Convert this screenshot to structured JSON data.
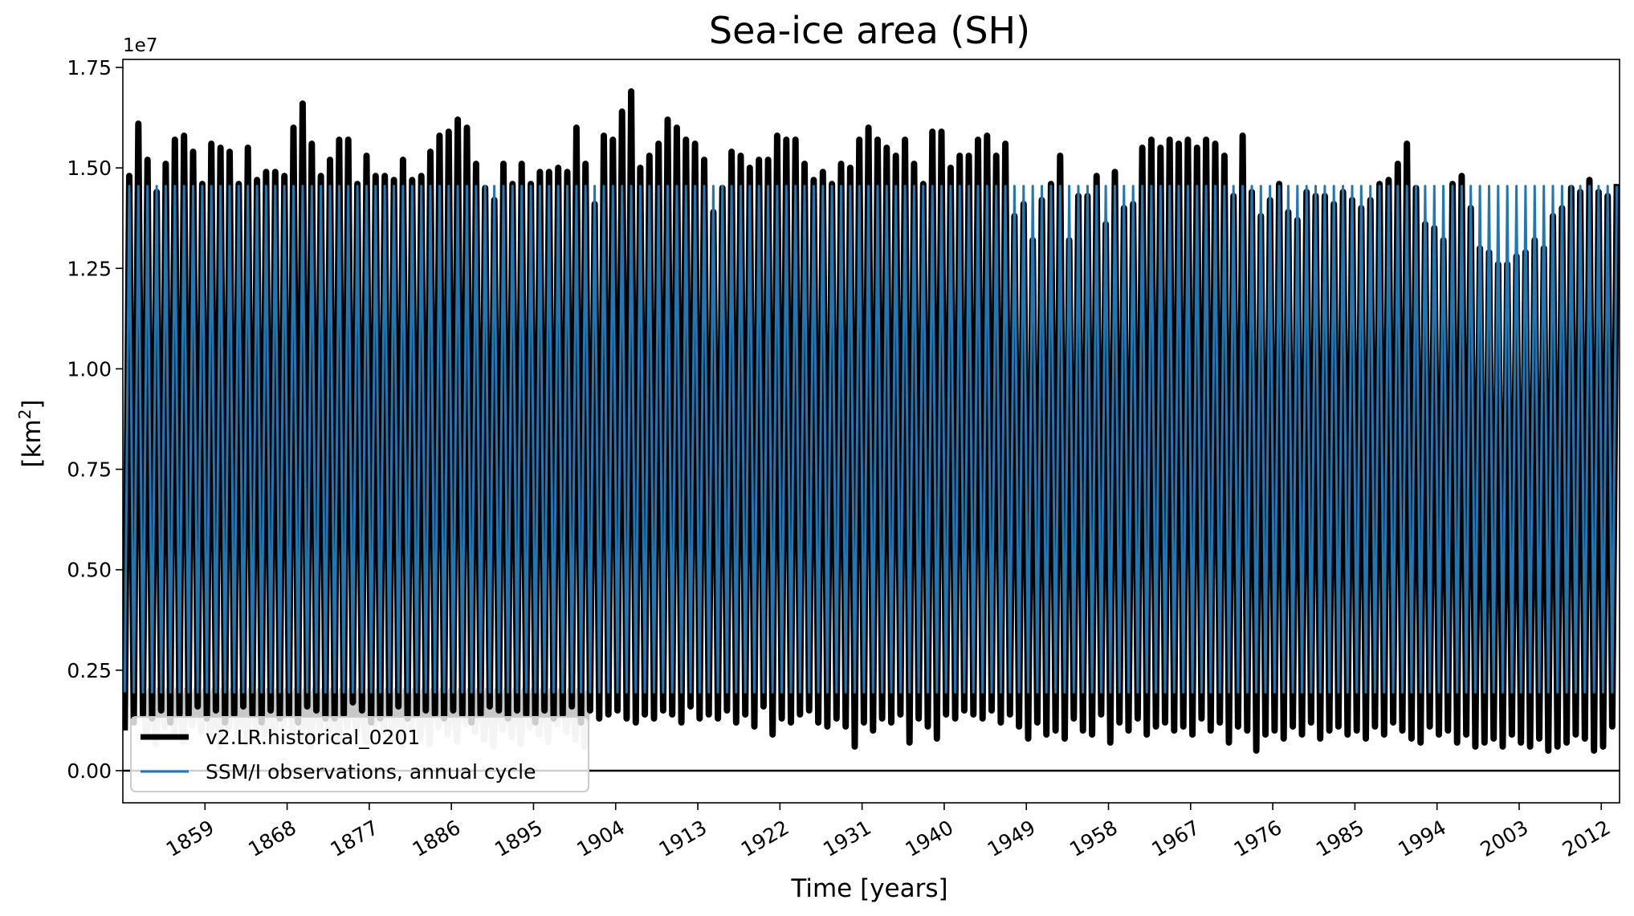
{
  "chart_data": {
    "type": "line",
    "title": "Sea-ice area (SH)",
    "xlabel": "Time [years]",
    "ylabel_main": "[km",
    "ylabel_sup": "2",
    "ylabel_close": "]",
    "offset_label": "1e7",
    "xlim": [
      1850,
      2014
    ],
    "ylim": [
      -0.08,
      1.77
    ],
    "y_ticks": [
      0.0,
      0.25,
      0.5,
      0.75,
      1.0,
      1.25,
      1.5,
      1.75
    ],
    "y_tick_labels": [
      "0.00",
      "0.25",
      "0.50",
      "0.75",
      "1.00",
      "1.25",
      "1.50",
      "1.75"
    ],
    "x_ticks": [
      1859,
      1868,
      1877,
      1886,
      1895,
      1904,
      1913,
      1922,
      1931,
      1940,
      1949,
      1958,
      1967,
      1976,
      1985,
      1994,
      2003,
      2012
    ],
    "x_tick_labels": [
      "1859",
      "1868",
      "1877",
      "1886",
      "1895",
      "1904",
      "1913",
      "1922",
      "1931",
      "1940",
      "1949",
      "1958",
      "1967",
      "1976",
      "1985",
      "1994",
      "2003",
      "2012"
    ],
    "zero_line": true,
    "grid": false,
    "legend_position": "lower-left",
    "series": [
      {
        "name": "v2.LR.historical_0201",
        "color": "#000000",
        "style": "seasonal-cycle",
        "years": [
          1850,
          1851,
          1852,
          1853,
          1854,
          1855,
          1856,
          1857,
          1858,
          1859,
          1860,
          1861,
          1862,
          1863,
          1864,
          1865,
          1866,
          1867,
          1868,
          1869,
          1870,
          1871,
          1872,
          1873,
          1874,
          1875,
          1876,
          1877,
          1878,
          1879,
          1880,
          1881,
          1882,
          1883,
          1884,
          1885,
          1886,
          1887,
          1888,
          1889,
          1890,
          1891,
          1892,
          1893,
          1894,
          1895,
          1896,
          1897,
          1898,
          1899,
          1900,
          1901,
          1902,
          1903,
          1904,
          1905,
          1906,
          1907,
          1908,
          1909,
          1910,
          1911,
          1912,
          1913,
          1914,
          1915,
          1916,
          1917,
          1918,
          1919,
          1920,
          1921,
          1922,
          1923,
          1924,
          1925,
          1926,
          1927,
          1928,
          1929,
          1930,
          1931,
          1932,
          1933,
          1934,
          1935,
          1936,
          1937,
          1938,
          1939,
          1940,
          1941,
          1942,
          1943,
          1944,
          1945,
          1946,
          1947,
          1948,
          1949,
          1950,
          1951,
          1952,
          1953,
          1954,
          1955,
          1956,
          1957,
          1958,
          1959,
          1960,
          1961,
          1962,
          1963,
          1964,
          1965,
          1966,
          1967,
          1968,
          1969,
          1970,
          1971,
          1972,
          1973,
          1974,
          1975,
          1976,
          1977,
          1978,
          1979,
          1980,
          1981,
          1982,
          1983,
          1984,
          1985,
          1986,
          1987,
          1988,
          1989,
          1990,
          1991,
          1992,
          1993,
          1994,
          1995,
          1996,
          1997,
          1998,
          1999,
          2000,
          2001,
          2002,
          2003,
          2004,
          2005,
          2006,
          2007,
          2008,
          2009,
          2010,
          2011,
          2012,
          2013
        ],
        "annual_max": [
          1.48,
          1.61,
          1.52,
          1.44,
          1.51,
          1.57,
          1.58,
          1.54,
          1.46,
          1.56,
          1.55,
          1.54,
          1.46,
          1.55,
          1.47,
          1.49,
          1.49,
          1.48,
          1.6,
          1.66,
          1.56,
          1.48,
          1.52,
          1.57,
          1.57,
          1.46,
          1.53,
          1.48,
          1.48,
          1.47,
          1.52,
          1.47,
          1.48,
          1.54,
          1.58,
          1.59,
          1.62,
          1.6,
          1.51,
          1.45,
          1.42,
          1.51,
          1.46,
          1.51,
          1.46,
          1.49,
          1.49,
          1.5,
          1.49,
          1.6,
          1.51,
          1.41,
          1.58,
          1.57,
          1.64,
          1.69,
          1.5,
          1.53,
          1.56,
          1.62,
          1.6,
          1.57,
          1.56,
          1.52,
          1.39,
          1.45,
          1.54,
          1.53,
          1.5,
          1.52,
          1.52,
          1.58,
          1.57,
          1.57,
          1.51,
          1.47,
          1.49,
          1.46,
          1.51,
          1.5,
          1.57,
          1.6,
          1.57,
          1.55,
          1.53,
          1.57,
          1.51,
          1.46,
          1.59,
          1.59,
          1.5,
          1.53,
          1.53,
          1.57,
          1.58,
          1.53,
          1.56,
          1.38,
          1.41,
          1.32,
          1.42,
          1.46,
          1.53,
          1.32,
          1.43,
          1.43,
          1.48,
          1.36,
          1.49,
          1.4,
          1.41,
          1.55,
          1.57,
          1.55,
          1.57,
          1.56,
          1.57,
          1.55,
          1.57,
          1.56,
          1.53,
          1.43,
          1.58,
          1.44,
          1.38,
          1.42,
          1.46,
          1.39,
          1.37,
          1.44,
          1.43,
          1.43,
          1.41,
          1.44,
          1.42,
          1.4,
          1.42,
          1.46,
          1.47,
          1.51,
          1.56,
          1.45,
          1.36,
          1.35,
          1.32,
          1.46,
          1.48,
          1.4,
          1.3,
          1.29,
          1.26,
          1.26,
          1.28,
          1.29,
          1.32,
          1.3,
          1.38,
          1.4,
          1.45,
          1.44,
          1.47,
          1.44,
          1.43,
          1.46
        ],
        "annual_min": [
          0.1,
          0.12,
          0.14,
          0.13,
          0.15,
          0.12,
          0.14,
          0.14,
          0.16,
          0.13,
          0.15,
          0.12,
          0.14,
          0.16,
          0.14,
          0.12,
          0.15,
          0.13,
          0.14,
          0.12,
          0.16,
          0.15,
          0.13,
          0.13,
          0.14,
          0.17,
          0.15,
          0.12,
          0.13,
          0.14,
          0.16,
          0.13,
          0.14,
          0.15,
          0.14,
          0.13,
          0.15,
          0.14,
          0.12,
          0.14,
          0.16,
          0.15,
          0.13,
          0.15,
          0.14,
          0.12,
          0.15,
          0.13,
          0.14,
          0.16,
          0.12,
          0.15,
          0.13,
          0.14,
          0.15,
          0.13,
          0.12,
          0.14,
          0.13,
          0.15,
          0.14,
          0.12,
          0.16,
          0.13,
          0.14,
          0.13,
          0.15,
          0.12,
          0.14,
          0.11,
          0.16,
          0.09,
          0.13,
          0.12,
          0.14,
          0.15,
          0.12,
          0.11,
          0.13,
          0.11,
          0.06,
          0.12,
          0.1,
          0.13,
          0.12,
          0.14,
          0.07,
          0.13,
          0.11,
          0.08,
          0.14,
          0.13,
          0.15,
          0.14,
          0.13,
          0.15,
          0.12,
          0.14,
          0.11,
          0.08,
          0.12,
          0.09,
          0.1,
          0.08,
          0.13,
          0.1,
          0.09,
          0.14,
          0.07,
          0.12,
          0.1,
          0.13,
          0.09,
          0.11,
          0.12,
          0.1,
          0.11,
          0.09,
          0.13,
          0.1,
          0.12,
          0.07,
          0.11,
          0.1,
          0.05,
          0.09,
          0.1,
          0.08,
          0.11,
          0.09,
          0.12,
          0.08,
          0.1,
          0.11,
          0.09,
          0.1,
          0.08,
          0.11,
          0.09,
          0.12,
          0.1,
          0.08,
          0.07,
          0.11,
          0.09,
          0.1,
          0.07,
          0.09,
          0.06,
          0.07,
          0.08,
          0.06,
          0.09,
          0.07,
          0.06,
          0.08,
          0.05,
          0.06,
          0.07,
          0.09,
          0.08,
          0.05,
          0.06,
          0.11
        ]
      },
      {
        "name": "SSM/I observations, annual cycle",
        "color": "#1f77b4",
        "style": "repeating-annual-cycle",
        "annual_max": 1.455,
        "annual_min": 0.195
      }
    ],
    "shading": {
      "color": "#c8c8c8",
      "x_range": [
        1852,
        1900
      ],
      "min_range": [
        0.06,
        0.12
      ]
    }
  }
}
